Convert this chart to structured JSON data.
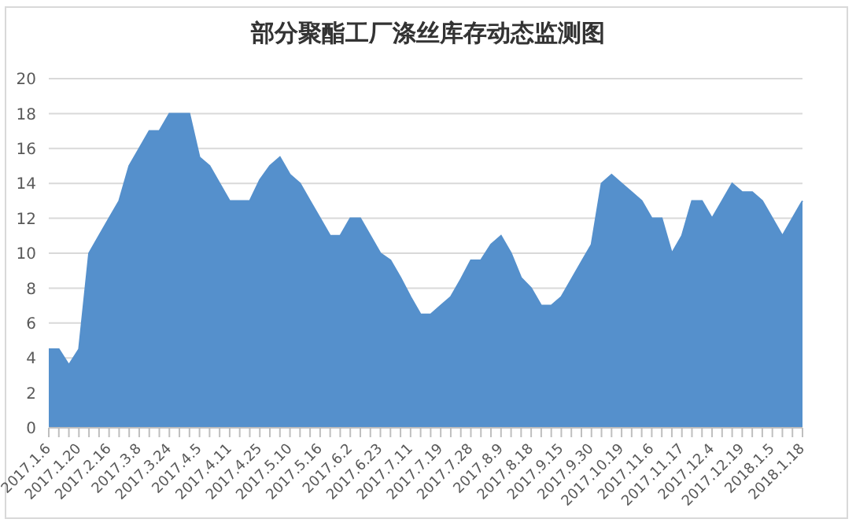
{
  "chart_data": {
    "type": "area",
    "title": "部分聚酯工厂涤丝库存动态监测图",
    "categories": [
      "2017.1.6",
      null,
      null,
      "2017.1.20",
      null,
      null,
      "2017.2.16",
      null,
      null,
      "2017.3.8",
      null,
      null,
      "2017.3.24",
      null,
      null,
      "2017.4.5",
      null,
      null,
      "2017.4.11",
      null,
      null,
      "2017.4.25",
      null,
      null,
      "2017.5.10",
      null,
      null,
      "2017.5.16",
      null,
      null,
      "2017.6.2",
      null,
      null,
      "2017.6.23",
      null,
      null,
      "2017.7.11",
      null,
      null,
      "2017.7.19",
      null,
      null,
      "2017.7.28",
      null,
      null,
      "2017.8.9",
      null,
      null,
      "2017.8.18",
      null,
      null,
      "2017.9.15",
      null,
      null,
      "2017.9.30",
      null,
      null,
      "2017.10.19",
      null,
      null,
      "2017.11.6",
      null,
      null,
      "2017.11.17",
      null,
      null,
      "2017.12.4",
      null,
      null,
      "2017.12.19",
      null,
      null,
      "2018.1.5",
      null,
      null,
      "2018.1.18"
    ],
    "series": [
      {
        "color": "#5590cc",
        "values": [
          4.5,
          4.5,
          3.6,
          4.5,
          10,
          11,
          12,
          13,
          15,
          16,
          17,
          17,
          18,
          18,
          18,
          15.5,
          15,
          14,
          13,
          13,
          13,
          14.2,
          15,
          15.5,
          14.5,
          14,
          13,
          12,
          11,
          11,
          12,
          12,
          11,
          10,
          9.6,
          8.6,
          7.5,
          6.5,
          6.5,
          7,
          7.5,
          8.5,
          9.6,
          9.6,
          10.5,
          11,
          10,
          8.6,
          8,
          7,
          7,
          7.5,
          8.5,
          9.5,
          10.5,
          14,
          14.5,
          14,
          13.5,
          13,
          12,
          12,
          10,
          11,
          13,
          13,
          12,
          13,
          14,
          13.5,
          13.5,
          13,
          12,
          11,
          12,
          13
        ]
      }
    ],
    "ylim": [
      0,
      20
    ],
    "yticks": [
      0,
      2,
      4,
      6,
      8,
      10,
      12,
      14,
      16,
      18,
      20
    ],
    "grid": "y"
  }
}
